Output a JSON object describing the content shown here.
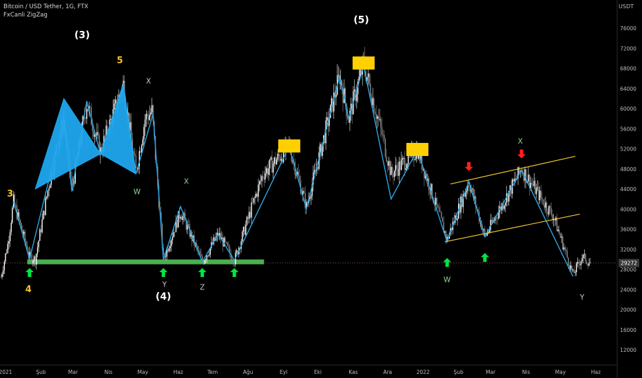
{
  "header": {
    "symbol_line": "Bitcoin / USD Tether, 1G, FTX",
    "indicator": "FxCanli ZigZag",
    "currency_unit": "USDT"
  },
  "price_tag": "29272",
  "colors": {
    "background": "#000000",
    "candle_up": "#ffffff",
    "candle_down": "#8a8a8a",
    "zigzag": "#2aa8e8",
    "harmonic_fill": "#1fa6ee",
    "support_band": "#4caf50",
    "channel": "#f7c62f",
    "box": "#ffd000",
    "up_arrow": "#00e640",
    "down_arrow": "#ff2020",
    "wave_label_yellow": "#f5c324",
    "wave_label_white": "#ffffff",
    "wave_label_green": "#8fd48f",
    "wave_label_grey": "#c7c7c7"
  },
  "chart_data": {
    "type": "candlestick",
    "title": "Bitcoin / USD Tether, 1G, FTX",
    "ylabel": "USDT",
    "ylim": [
      9000,
      79500
    ],
    "y_ticks": [
      12000,
      16000,
      20000,
      24000,
      28000,
      32000,
      36000,
      40000,
      44000,
      48000,
      52000,
      56000,
      60000,
      64000,
      68000,
      72000,
      76000
    ],
    "x_ticks": [
      {
        "label": "2021",
        "date": "2021-01-01"
      },
      {
        "label": "Şub",
        "date": "2021-02-01"
      },
      {
        "label": "Mar",
        "date": "2021-03-01"
      },
      {
        "label": "Nis",
        "date": "2021-04-01"
      },
      {
        "label": "May",
        "date": "2021-05-01"
      },
      {
        "label": "Haz",
        "date": "2021-06-01"
      },
      {
        "label": "Tem",
        "date": "2021-07-01"
      },
      {
        "label": "Ağu",
        "date": "2021-08-01"
      },
      {
        "label": "Eyl",
        "date": "2021-09-01"
      },
      {
        "label": "Eki",
        "date": "2021-10-01"
      },
      {
        "label": "Kas",
        "date": "2021-11-01"
      },
      {
        "label": "Ara",
        "date": "2021-12-01"
      },
      {
        "label": "2022",
        "date": "2022-01-01"
      },
      {
        "label": "Şub",
        "date": "2022-02-01"
      },
      {
        "label": "Mar",
        "date": "2022-03-01"
      },
      {
        "label": "Nis",
        "date": "2022-04-01"
      },
      {
        "label": "May",
        "date": "2022-05-01"
      },
      {
        "label": "Haz",
        "date": "2022-06-01"
      }
    ],
    "last_price": 29272,
    "close_series": [
      {
        "x": "2020-12-28",
        "y": 26500
      },
      {
        "x": "2021-01-03",
        "y": 33000
      },
      {
        "x": "2021-01-08",
        "y": 41500
      },
      {
        "x": "2021-01-15",
        "y": 36000
      },
      {
        "x": "2021-01-22",
        "y": 30500
      },
      {
        "x": "2021-01-27",
        "y": 30000
      },
      {
        "x": "2021-02-08",
        "y": 45000
      },
      {
        "x": "2021-02-21",
        "y": 58000
      },
      {
        "x": "2021-02-28",
        "y": 44000
      },
      {
        "x": "2021-03-13",
        "y": 61000
      },
      {
        "x": "2021-03-25",
        "y": 51500
      },
      {
        "x": "2021-04-14",
        "y": 64800
      },
      {
        "x": "2021-04-25",
        "y": 47500
      },
      {
        "x": "2021-05-03",
        "y": 58000
      },
      {
        "x": "2021-05-09",
        "y": 59500
      },
      {
        "x": "2021-05-19",
        "y": 30000
      },
      {
        "x": "2021-06-03",
        "y": 39500
      },
      {
        "x": "2021-06-22",
        "y": 29500
      },
      {
        "x": "2021-07-06",
        "y": 35000
      },
      {
        "x": "2021-07-20",
        "y": 29800
      },
      {
        "x": "2021-08-14",
        "y": 47000
      },
      {
        "x": "2021-09-06",
        "y": 52500
      },
      {
        "x": "2021-09-21",
        "y": 40500
      },
      {
        "x": "2021-10-20",
        "y": 66500
      },
      {
        "x": "2021-10-28",
        "y": 58000
      },
      {
        "x": "2021-11-10",
        "y": 69000
      },
      {
        "x": "2021-11-27",
        "y": 54000
      },
      {
        "x": "2021-12-04",
        "y": 47000
      },
      {
        "x": "2021-12-27",
        "y": 51800
      },
      {
        "x": "2022-01-22",
        "y": 34000
      },
      {
        "x": "2022-02-10",
        "y": 45500
      },
      {
        "x": "2022-02-24",
        "y": 34500
      },
      {
        "x": "2022-03-28",
        "y": 48000
      },
      {
        "x": "2022-04-25",
        "y": 38500
      },
      {
        "x": "2022-05-12",
        "y": 27000
      },
      {
        "x": "2022-05-20",
        "y": 30500
      },
      {
        "x": "2022-05-27",
        "y": 29272
      }
    ],
    "zigzag": [
      {
        "x": "2021-01-08",
        "y": 41500
      },
      {
        "x": "2021-01-22",
        "y": 30000
      },
      {
        "x": "2021-02-21",
        "y": 58000
      },
      {
        "x": "2021-02-28",
        "y": 43500
      },
      {
        "x": "2021-03-13",
        "y": 61500
      },
      {
        "x": "2021-03-25",
        "y": 51000
      },
      {
        "x": "2021-04-14",
        "y": 64800
      },
      {
        "x": "2021-04-25",
        "y": 47000
      },
      {
        "x": "2021-05-10",
        "y": 59000
      },
      {
        "x": "2021-05-19",
        "y": 30000
      },
      {
        "x": "2021-06-03",
        "y": 40500
      },
      {
        "x": "2021-06-22",
        "y": 29500
      },
      {
        "x": "2021-07-06",
        "y": 35000
      },
      {
        "x": "2021-07-20",
        "y": 29800
      },
      {
        "x": "2021-09-06",
        "y": 52500
      },
      {
        "x": "2021-09-21",
        "y": 40000
      },
      {
        "x": "2021-10-20",
        "y": 66500
      },
      {
        "x": "2021-10-28",
        "y": 58000
      },
      {
        "x": "2021-11-10",
        "y": 68500
      },
      {
        "x": "2021-12-04",
        "y": 42000
      },
      {
        "x": "2021-12-27",
        "y": 51800
      },
      {
        "x": "2022-01-22",
        "y": 33500
      },
      {
        "x": "2022-02-10",
        "y": 45500
      },
      {
        "x": "2022-02-24",
        "y": 34500
      },
      {
        "x": "2022-03-28",
        "y": 47800
      },
      {
        "x": "2022-05-12",
        "y": 26600
      }
    ],
    "harmonic_patterns": [
      [
        {
          "x": "2021-01-27",
          "y": 44000
        },
        {
          "x": "2021-02-21",
          "y": 62000
        },
        {
          "x": "2021-03-25",
          "y": 51000
        }
      ],
      [
        {
          "x": "2021-03-25",
          "y": 51000
        },
        {
          "x": "2021-04-14",
          "y": 65000
        },
        {
          "x": "2021-04-25",
          "y": 47000
        }
      ]
    ],
    "support_zone": {
      "x_start": "2021-01-20",
      "x_end": "2021-08-15",
      "y": 29500
    },
    "channel": {
      "upper": [
        {
          "x": "2022-01-25",
          "y": 45000
        },
        {
          "x": "2022-05-14",
          "y": 50500
        }
      ],
      "lower": [
        {
          "x": "2022-01-20",
          "y": 33500
        },
        {
          "x": "2022-05-18",
          "y": 39000
        }
      ]
    },
    "boxes": [
      {
        "x": "2021-09-06",
        "y": 52500
      },
      {
        "x": "2021-11-10",
        "y": 69000
      },
      {
        "x": "2021-12-27",
        "y": 51800
      }
    ],
    "up_arrows": [
      {
        "x": "2021-01-22",
        "y": 28000
      },
      {
        "x": "2021-05-19",
        "y": 28000
      },
      {
        "x": "2021-06-22",
        "y": 28000
      },
      {
        "x": "2021-07-20",
        "y": 28000
      },
      {
        "x": "2022-01-22",
        "y": 30000
      },
      {
        "x": "2022-02-24",
        "y": 31000
      }
    ],
    "down_arrows": [
      {
        "x": "2022-02-10",
        "y": 48000
      },
      {
        "x": "2022-03-28",
        "y": 50500
      }
    ],
    "wave_labels": [
      {
        "text": "(3)",
        "x": "2021-03-09",
        "y": 74000,
        "color": "#ffffff"
      },
      {
        "text": "5",
        "x": "2021-04-11",
        "y": 69000,
        "color": "#f5c324"
      },
      {
        "text": "X",
        "x": "2021-05-06",
        "y": 65000,
        "color": "#c7c7c7"
      },
      {
        "text": "3",
        "x": "2021-01-05",
        "y": 42500,
        "color": "#f5c324"
      },
      {
        "text": "W",
        "x": "2021-04-26",
        "y": 43000,
        "color": "#8fd48f"
      },
      {
        "text": "X",
        "x": "2021-06-08",
        "y": 45000,
        "color": "#8fd48f"
      },
      {
        "text": "4",
        "x": "2021-01-21",
        "y": 23500,
        "color": "#f5c324"
      },
      {
        "text": "Y",
        "x": "2021-05-20",
        "y": 24500,
        "color": "#c7c7c7"
      },
      {
        "text": "(4)",
        "x": "2021-05-19",
        "y": 22000,
        "color": "#ffffff"
      },
      {
        "text": "Z",
        "x": "2021-06-22",
        "y": 24000,
        "color": "#c7c7c7"
      },
      {
        "text": "(5)",
        "x": "2021-11-08",
        "y": 77000,
        "color": "#ffffff"
      },
      {
        "text": "X",
        "x": "2022-03-27",
        "y": 53000,
        "color": "#8fd48f"
      },
      {
        "text": "W",
        "x": "2022-01-22",
        "y": 25500,
        "color": "#8fd48f"
      },
      {
        "text": "Y",
        "x": "2022-05-20",
        "y": 22000,
        "color": "#c7c7c7"
      }
    ],
    "grid": false,
    "legend": "none"
  }
}
